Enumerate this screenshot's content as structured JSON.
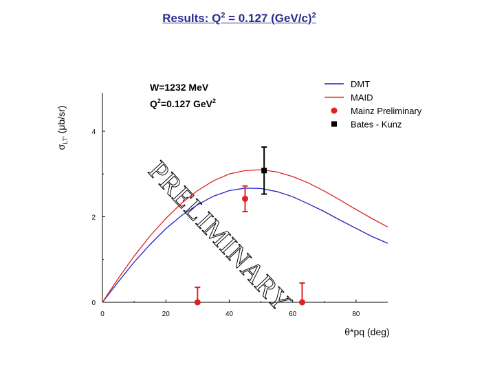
{
  "slide": {
    "title_prefix": "Results:  Q",
    "title_sup1": "2",
    "title_mid": " = 0.127 (GeV/c)",
    "title_sup2": "2"
  },
  "chart_data": {
    "type": "line",
    "annotation_line1": "W=1232 MeV",
    "annotation_line2_prefix": "Q",
    "annotation_line2_sup": "2",
    "annotation_line2_mid": "=0.127 GeV",
    "annotation_line2_sup2": "2",
    "xlabel": "θ*pq (deg)",
    "ylabel_prefix": "σ",
    "ylabel_sub": "LT'",
    "ylabel_suffix": " (μb/sr)",
    "xlim": [
      0,
      90
    ],
    "ylim": [
      0,
      4.9
    ],
    "x_ticks": [
      0,
      20,
      40,
      60,
      80
    ],
    "y_ticks": [
      0,
      2,
      4
    ],
    "watermark": "PRELIMINARY",
    "legend_position": "top-right",
    "series": [
      {
        "name": "DMT",
        "style": "line",
        "color": "#2020c0",
        "x": [
          0,
          5,
          10,
          15,
          20,
          25,
          30,
          35,
          40,
          45,
          50,
          55,
          60,
          65,
          70,
          75,
          80,
          85,
          90
        ],
        "y": [
          0,
          0.48,
          0.94,
          1.35,
          1.72,
          2.03,
          2.28,
          2.48,
          2.61,
          2.67,
          2.66,
          2.59,
          2.47,
          2.3,
          2.12,
          1.92,
          1.73,
          1.54,
          1.38
        ]
      },
      {
        "name": "MAID",
        "style": "line",
        "color": "#e02020",
        "x": [
          0,
          5,
          10,
          15,
          20,
          25,
          30,
          35,
          40,
          45,
          50,
          55,
          60,
          65,
          70,
          75,
          80,
          85,
          90
        ],
        "y": [
          0,
          0.56,
          1.08,
          1.55,
          1.96,
          2.32,
          2.61,
          2.84,
          3.0,
          3.08,
          3.1,
          3.05,
          2.94,
          2.79,
          2.6,
          2.39,
          2.17,
          1.96,
          1.76
        ]
      },
      {
        "name": "Mainz Preliminary",
        "style": "points",
        "marker": "circle",
        "color": "#e02020",
        "x": [
          30,
          45,
          63
        ],
        "y": [
          0.0,
          2.42,
          0.0
        ],
        "err": [
          0.35,
          0.3,
          0.45
        ]
      },
      {
        "name": "Bates - Kunz",
        "style": "points",
        "marker": "square",
        "color": "#000000",
        "x": [
          51
        ],
        "y": [
          3.08
        ],
        "err": [
          0.55
        ]
      }
    ]
  }
}
